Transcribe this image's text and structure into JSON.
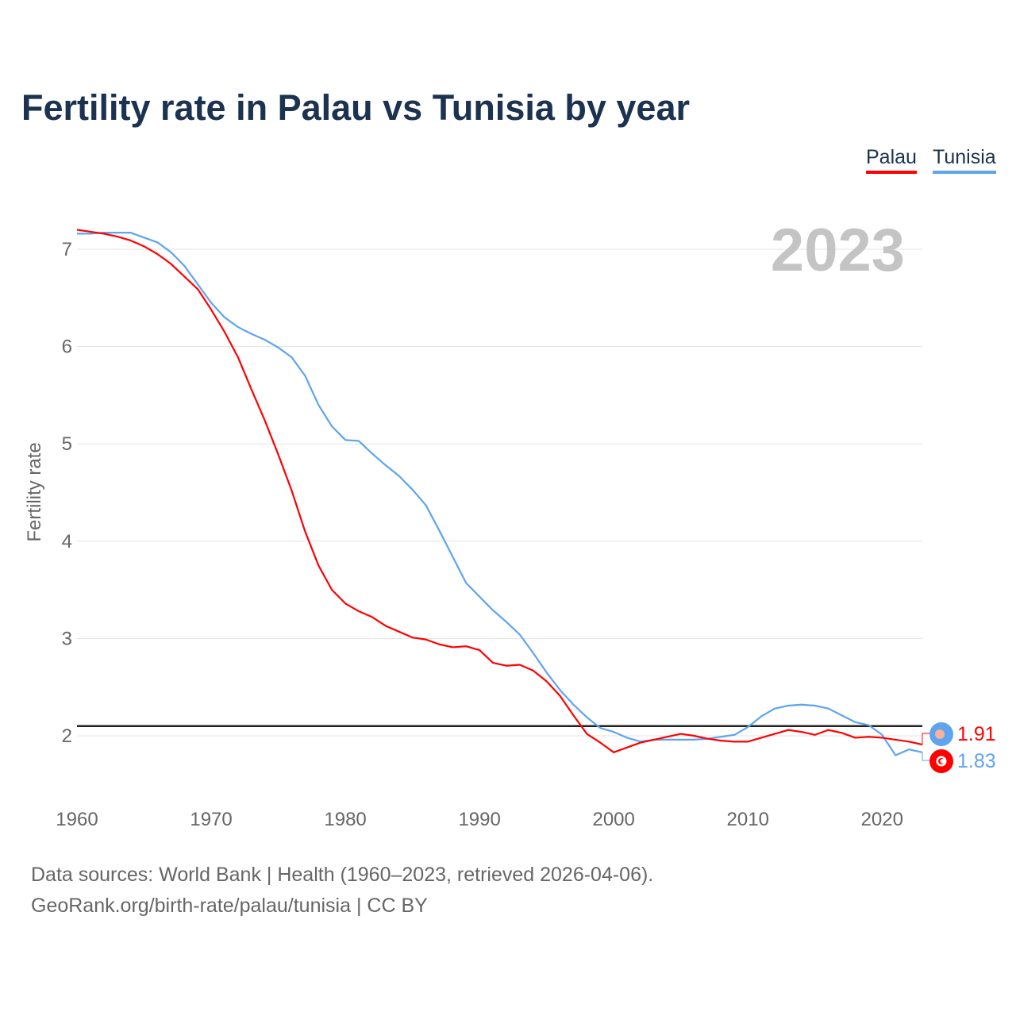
{
  "chart_data": {
    "type": "line",
    "title": "Fertility rate in Palau vs Tunisia by year",
    "xlabel": "",
    "ylabel": "Fertility rate",
    "xlim": [
      1960,
      2023
    ],
    "ylim": [
      1.5,
      7.5
    ],
    "x_ticks": [
      "1960",
      "1970",
      "1980",
      "1990",
      "2000",
      "2010",
      "2020"
    ],
    "y_ticks": [
      "2",
      "3",
      "4",
      "5",
      "6",
      "7"
    ],
    "grid": true,
    "legend_placement": "top-right",
    "year_watermark": "2023",
    "reference_line": 2.1,
    "x": [
      1960,
      1961,
      1962,
      1963,
      1964,
      1965,
      1966,
      1967,
      1968,
      1969,
      1970,
      1971,
      1972,
      1973,
      1974,
      1975,
      1976,
      1977,
      1978,
      1979,
      1980,
      1981,
      1982,
      1983,
      1984,
      1985,
      1986,
      1987,
      1988,
      1989,
      1990,
      1991,
      1992,
      1993,
      1994,
      1995,
      1996,
      1997,
      1998,
      1999,
      2000,
      2001,
      2002,
      2003,
      2004,
      2005,
      2006,
      2007,
      2008,
      2009,
      2010,
      2011,
      2012,
      2013,
      2014,
      2015,
      2016,
      2017,
      2018,
      2019,
      2020,
      2021,
      2022,
      2023
    ],
    "series": [
      {
        "name": "Palau",
        "color": "#ff0000",
        "end_label": "1.91",
        "values": [
          7.2,
          7.18,
          7.16,
          7.13,
          7.09,
          7.03,
          6.95,
          6.85,
          6.72,
          6.59,
          6.38,
          6.15,
          5.89,
          5.56,
          5.24,
          4.89,
          4.52,
          4.1,
          3.75,
          3.5,
          3.36,
          3.28,
          3.22,
          3.13,
          3.07,
          3.01,
          2.99,
          2.94,
          2.91,
          2.92,
          2.88,
          2.75,
          2.72,
          2.73,
          2.67,
          2.56,
          2.41,
          2.21,
          2.02,
          1.93,
          1.83,
          1.88,
          1.93,
          1.96,
          1.99,
          2.02,
          2.0,
          1.97,
          1.95,
          1.94,
          1.94,
          1.98,
          2.02,
          2.06,
          2.04,
          2.01,
          2.06,
          2.03,
          1.98,
          1.99,
          1.98,
          1.96,
          1.94,
          1.91
        ]
      },
      {
        "name": "Tunisia",
        "color": "#5ea4ee",
        "end_label": "1.83",
        "values": [
          7.16,
          7.16,
          7.17,
          7.17,
          7.17,
          7.12,
          7.07,
          6.97,
          6.83,
          6.64,
          6.45,
          6.3,
          6.2,
          6.13,
          6.07,
          5.99,
          5.89,
          5.7,
          5.4,
          5.18,
          5.04,
          5.03,
          4.9,
          4.78,
          4.67,
          4.53,
          4.37,
          4.11,
          3.84,
          3.57,
          3.43,
          3.29,
          3.17,
          3.04,
          2.85,
          2.65,
          2.47,
          2.32,
          2.19,
          2.08,
          2.04,
          1.98,
          1.94,
          1.96,
          1.96,
          1.96,
          1.96,
          1.97,
          1.99,
          2.01,
          2.09,
          2.2,
          2.28,
          2.31,
          2.32,
          2.31,
          2.28,
          2.21,
          2.14,
          2.11,
          2.01,
          1.8,
          1.86,
          1.83
        ]
      }
    ]
  },
  "footer": {
    "line1": "Data sources: World Bank | Health (1960–2023, retrieved 2026-04-06).",
    "line2": "GeoRank.org/birth-rate/palau/tunisia | CC BY"
  }
}
